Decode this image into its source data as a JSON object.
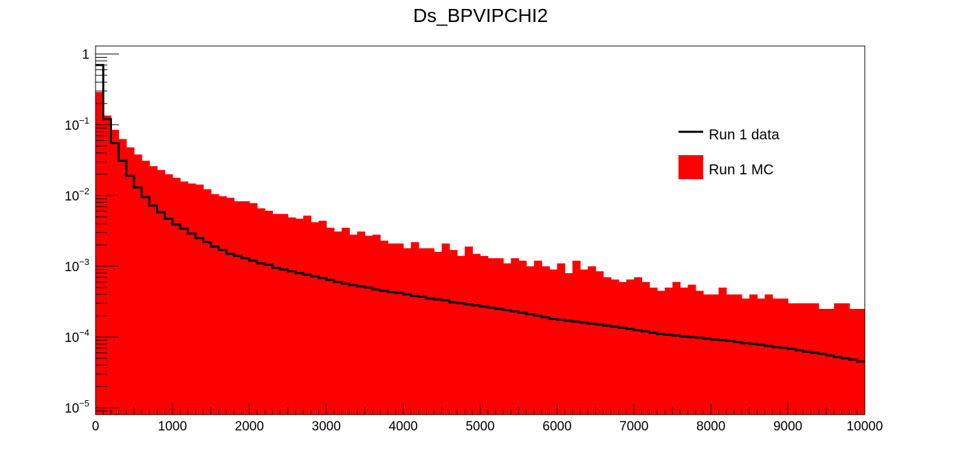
{
  "chart_data": {
    "type": "histogram",
    "title": "Ds_BPVIPCHI2",
    "xlabel": "",
    "ylabel": "",
    "xlim": [
      0,
      10000
    ],
    "ylim": [
      8e-06,
      1.3
    ],
    "y_scale": "log",
    "grid": false,
    "legend_position": "top-right",
    "bin_width": 100,
    "x_ticks": [
      "0",
      "1000",
      "2000",
      "3000",
      "4000",
      "5000",
      "6000",
      "7000",
      "8000",
      "9000",
      "10000"
    ],
    "y_ticks": [
      {
        "base": "1",
        "exp": ""
      },
      {
        "base": "10",
        "exp": "−1"
      },
      {
        "base": "10",
        "exp": "−2"
      },
      {
        "base": "10",
        "exp": "−3"
      },
      {
        "base": "10",
        "exp": "−4"
      },
      {
        "base": "10",
        "exp": "−5"
      }
    ],
    "series": [
      {
        "name": "Run 1 MC",
        "style": "filled",
        "color": "#ff0000",
        "values": [
          0.29,
          0.135,
          0.085,
          0.063,
          0.048,
          0.038,
          0.031,
          0.026,
          0.023,
          0.02,
          0.0178,
          0.0158,
          0.0148,
          0.0143,
          0.0123,
          0.0105,
          0.0098,
          0.0093,
          0.0083,
          0.0083,
          0.0078,
          0.0066,
          0.0061,
          0.0055,
          0.0055,
          0.0049,
          0.0047,
          0.0052,
          0.0042,
          0.0044,
          0.0035,
          0.0031,
          0.0035,
          0.0028,
          0.0031,
          0.0027,
          0.0028,
          0.0023,
          0.0021,
          0.0021,
          0.0018,
          0.0022,
          0.0018,
          0.0018,
          0.0016,
          0.0021,
          0.0017,
          0.0014,
          0.0019,
          0.0015,
          0.0014,
          0.0013,
          0.0013,
          0.0011,
          0.0013,
          0.0012,
          0.001,
          0.0012,
          0.001,
          0.0009,
          0.0011,
          0.0008,
          0.0012,
          0.0009,
          0.001,
          0.00085,
          0.0007,
          0.00065,
          0.0006,
          0.00065,
          0.0007,
          0.0006,
          0.0005,
          0.00045,
          0.0005,
          0.0006,
          0.0005,
          0.00055,
          0.00045,
          0.0004,
          0.0004,
          0.0005,
          0.0004,
          0.0004,
          0.00035,
          0.0004,
          0.00035,
          0.0004,
          0.00035,
          0.00035,
          0.0003,
          0.0003,
          0.0003,
          0.0003,
          0.00025,
          0.00025,
          0.0003,
          0.0003,
          0.00025,
          0.00025
        ]
      },
      {
        "name": "Run 1 data",
        "style": "step",
        "color": "#000000",
        "values": [
          0.7,
          0.12,
          0.055,
          0.031,
          0.019,
          0.013,
          0.0095,
          0.0072,
          0.0058,
          0.0047,
          0.0039,
          0.0034,
          0.0029,
          0.0025,
          0.0022,
          0.0019,
          0.0017,
          0.0015,
          0.0014,
          0.0013,
          0.0012,
          0.0011,
          0.00105,
          0.00095,
          0.0009,
          0.00085,
          0.0008,
          0.00076,
          0.00072,
          0.00068,
          0.00064,
          0.0006,
          0.00057,
          0.00054,
          0.00052,
          0.0005,
          0.00047,
          0.00045,
          0.00043,
          0.00042,
          0.0004,
          0.00038,
          0.00037,
          0.00035,
          0.00034,
          0.00033,
          0.00031,
          0.0003,
          0.00029,
          0.00028,
          0.00027,
          0.00026,
          0.00025,
          0.00024,
          0.00023,
          0.00022,
          0.00021,
          0.0002,
          0.00019,
          0.00018,
          0.000175,
          0.00017,
          0.000165,
          0.00016,
          0.000155,
          0.00015,
          0.000145,
          0.00014,
          0.000135,
          0.00013,
          0.000125,
          0.00012,
          0.000115,
          0.00011,
          0.000108,
          0.000105,
          0.000102,
          0.0001,
          9.8e-05,
          9.5e-05,
          9.2e-05,
          9e-05,
          8.8e-05,
          8.5e-05,
          8.2e-05,
          8e-05,
          7.8e-05,
          7.5e-05,
          7.2e-05,
          7e-05,
          6.8e-05,
          6.5e-05,
          6.2e-05,
          6e-05,
          5.8e-05,
          5.5e-05,
          5.2e-05,
          5e-05,
          4.8e-05,
          4.5e-05
        ]
      }
    ],
    "legend": [
      {
        "label": "Run 1 data",
        "kind": "line",
        "color": "#000000"
      },
      {
        "label": "Run 1 MC",
        "kind": "fill",
        "color": "#ff0000"
      }
    ]
  }
}
